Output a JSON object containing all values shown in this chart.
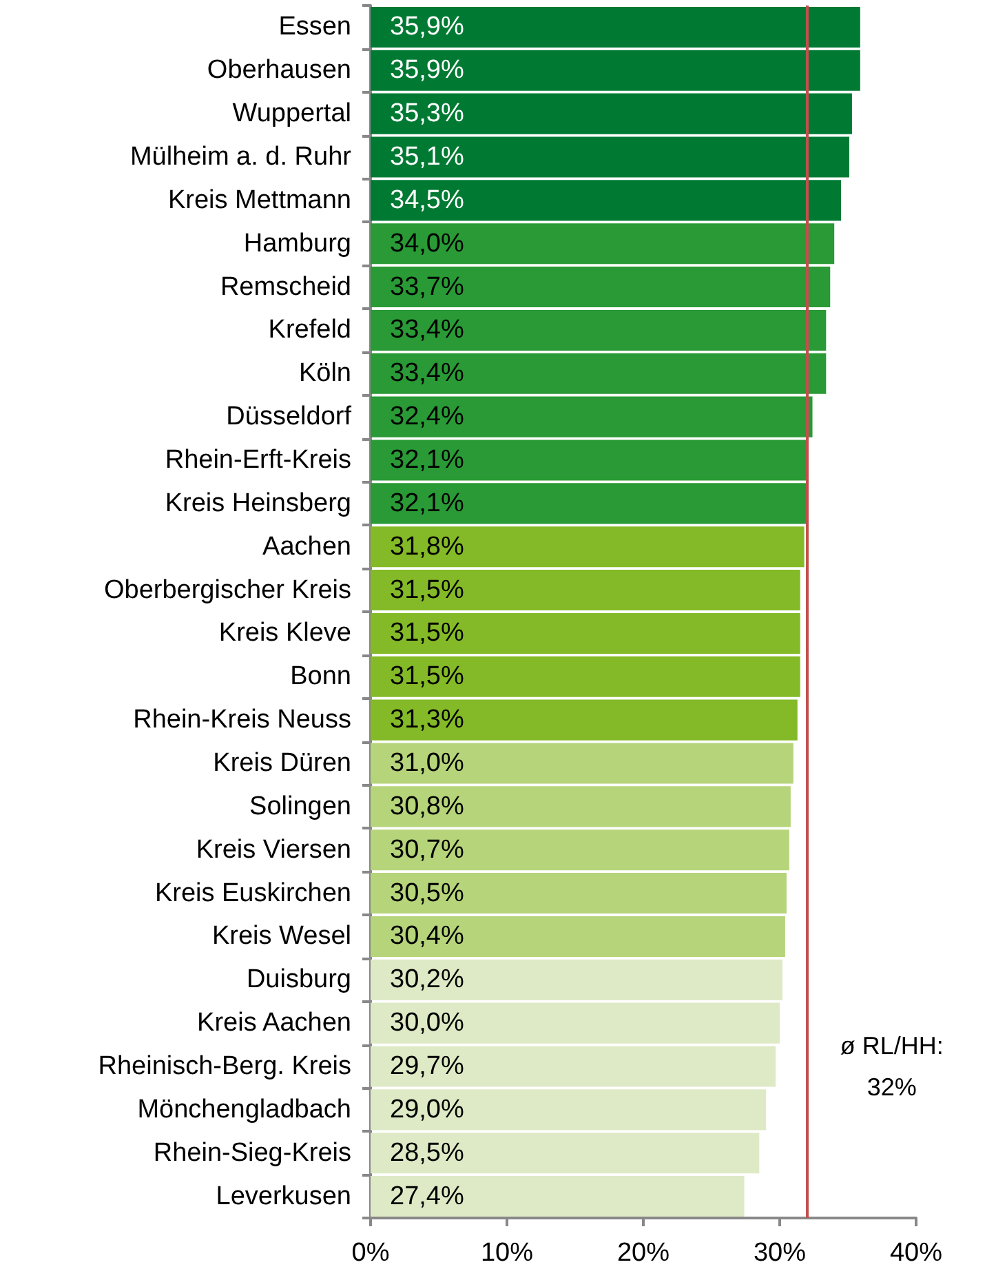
{
  "chart_data": {
    "type": "bar",
    "orientation": "horizontal",
    "categories": [
      "Essen",
      "Oberhausen",
      "Wuppertal",
      "Mülheim a. d. Ruhr",
      "Kreis Mettmann",
      "Hamburg",
      "Remscheid",
      "Krefeld",
      "Köln",
      "Düsseldorf",
      "Rhein-Erft-Kreis",
      "Kreis Heinsberg",
      "Aachen",
      "Oberbergischer Kreis",
      "Kreis Kleve",
      "Bonn",
      "Rhein-Kreis Neuss",
      "Kreis Düren",
      "Solingen",
      "Kreis Viersen",
      "Kreis Euskirchen",
      "Kreis Wesel",
      "Duisburg",
      "Kreis Aachen",
      "Rheinisch-Berg. Kreis",
      "Mönchengladbach",
      "Rhein-Sieg-Kreis",
      "Leverkusen"
    ],
    "values": [
      35.9,
      35.9,
      35.3,
      35.1,
      34.5,
      34.0,
      33.7,
      33.4,
      33.4,
      32.4,
      32.1,
      32.1,
      31.8,
      31.5,
      31.5,
      31.5,
      31.3,
      31.0,
      30.8,
      30.7,
      30.5,
      30.4,
      30.2,
      30.0,
      29.7,
      29.0,
      28.5,
      27.4
    ],
    "value_labels": [
      "35,9%",
      "35,9%",
      "35,3%",
      "35,1%",
      "34,5%",
      "34,0%",
      "33,7%",
      "33,4%",
      "33,4%",
      "32,4%",
      "32,1%",
      "32,1%",
      "31,8%",
      "31,5%",
      "31,5%",
      "31,5%",
      "31,3%",
      "31,0%",
      "30,8%",
      "30,7%",
      "30,5%",
      "30,4%",
      "30,2%",
      "30,0%",
      "29,7%",
      "29,0%",
      "28,5%",
      "27,4%"
    ],
    "colors": [
      "#007a33",
      "#007a33",
      "#007a33",
      "#007a33",
      "#007a33",
      "#299a35",
      "#299a35",
      "#299a35",
      "#299a35",
      "#299a35",
      "#299a35",
      "#299a35",
      "#84ba27",
      "#84ba27",
      "#84ba27",
      "#84ba27",
      "#84ba27",
      "#b6d47a",
      "#b6d47a",
      "#b6d47a",
      "#b6d47a",
      "#b6d47a",
      "#deeac5",
      "#deeac5",
      "#deeac5",
      "#deeac5",
      "#deeac5",
      "#deeac5"
    ],
    "xlim": [
      0,
      40
    ],
    "xticks": [
      {
        "value": 0,
        "label": "0%"
      },
      {
        "value": 10,
        "label": "10%"
      },
      {
        "value": 20,
        "label": "20%"
      },
      {
        "value": 30,
        "label": "30%"
      },
      {
        "value": 40,
        "label": "40%"
      }
    ],
    "ref_lines": [
      {
        "axis": "x",
        "value": 32,
        "label": "ø RL/HH:\n32%",
        "color": "#c0504d"
      }
    ],
    "grid": false
  }
}
